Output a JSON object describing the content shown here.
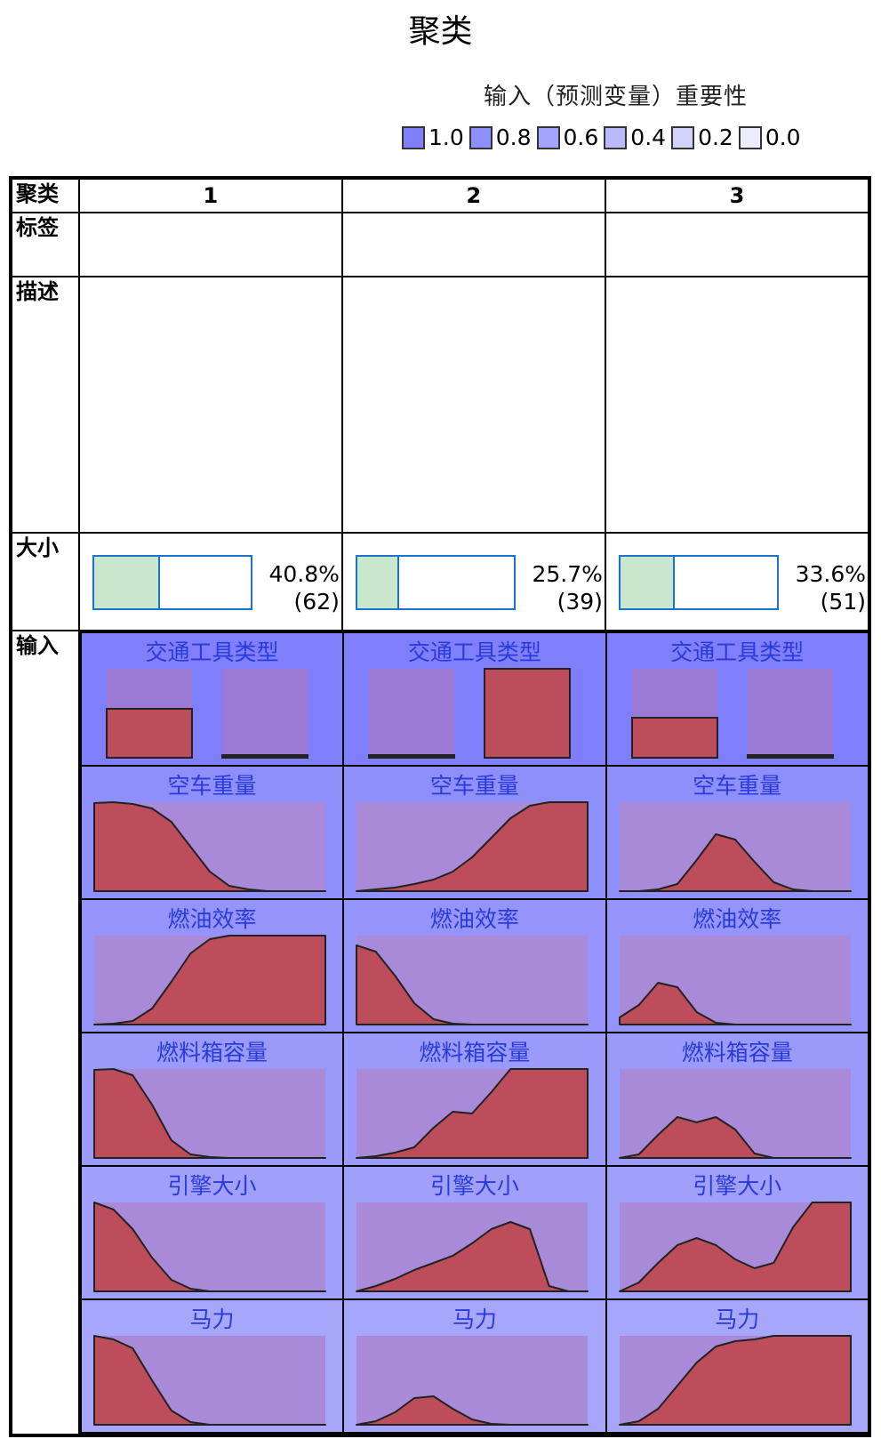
{
  "title": "聚类",
  "legend": {
    "title": "输入（预测变量）重要性",
    "items": [
      {
        "label": "1.0",
        "color": "#7f7ffb"
      },
      {
        "label": "0.8",
        "color": "#8f8ffb"
      },
      {
        "label": "0.6",
        "color": "#a3a3fb"
      },
      {
        "label": "0.4",
        "color": "#b9b9fb"
      },
      {
        "label": "0.2",
        "color": "#d2d2fb"
      },
      {
        "label": "0.0",
        "color": "#ececfb"
      }
    ]
  },
  "row_labels": {
    "cluster": "聚类",
    "label": "标签",
    "description": "描述",
    "size": "大小",
    "inputs": "输入"
  },
  "clusters": [
    "1",
    "2",
    "3"
  ],
  "chart_data": {
    "type": "table",
    "sizes": [
      {
        "cluster": "1",
        "percent": "40.8%",
        "count": "(62)",
        "fraction": 0.408
      },
      {
        "cluster": "2",
        "percent": "25.7%",
        "count": "(39)",
        "fraction": 0.257
      },
      {
        "cluster": "3",
        "percent": "33.6%",
        "count": "(51)",
        "fraction": 0.336
      }
    ],
    "inputs": [
      {
        "name": "交通工具类型",
        "importance": 1.0,
        "bg": "#7f7ffb",
        "kind": "bar",
        "clusters": [
          [
            0.55,
            0.02
          ],
          [
            0.0,
            1.0
          ],
          [
            0.45,
            0.0
          ]
        ]
      },
      {
        "name": "空车重量",
        "importance": 0.8,
        "bg": "#8f8ffb",
        "kind": "density",
        "clusters": [
          [
            0.99,
            1.0,
            0.98,
            0.93,
            0.78,
            0.5,
            0.22,
            0.06,
            0.02,
            0.0,
            0.0,
            0.0,
            0.0
          ],
          [
            0.0,
            0.02,
            0.04,
            0.08,
            0.13,
            0.22,
            0.38,
            0.6,
            0.82,
            0.96,
            1.0,
            1.0,
            1.0
          ],
          [
            0.0,
            0.0,
            0.02,
            0.08,
            0.35,
            0.64,
            0.58,
            0.33,
            0.1,
            0.02,
            0.0,
            0.0,
            0.0
          ]
        ]
      },
      {
        "name": "燃油效率",
        "importance": 0.75,
        "bg": "#9494fb",
        "kind": "density",
        "clusters": [
          [
            0.0,
            0.01,
            0.04,
            0.18,
            0.48,
            0.8,
            0.96,
            1.0,
            1.0,
            1.0,
            1.0,
            1.0,
            1.0
          ],
          [
            0.89,
            0.82,
            0.55,
            0.24,
            0.06,
            0.01,
            0.0,
            0.0,
            0.0,
            0.0,
            0.0,
            0.0,
            0.0
          ],
          [
            0.08,
            0.22,
            0.47,
            0.42,
            0.14,
            0.02,
            0.0,
            0.0,
            0.0,
            0.0,
            0.0,
            0.0,
            0.0
          ]
        ]
      },
      {
        "name": "燃料箱容量",
        "importance": 0.7,
        "bg": "#9a9afb",
        "kind": "density",
        "clusters": [
          [
            0.99,
            1.0,
            0.93,
            0.6,
            0.2,
            0.04,
            0.01,
            0.0,
            0.0,
            0.0,
            0.0,
            0.0,
            0.0
          ],
          [
            0.0,
            0.02,
            0.06,
            0.12,
            0.34,
            0.52,
            0.5,
            0.74,
            1.0,
            1.0,
            1.0,
            1.0,
            1.0
          ],
          [
            0.0,
            0.04,
            0.26,
            0.46,
            0.4,
            0.46,
            0.32,
            0.05,
            0.0,
            0.0,
            0.0,
            0.0,
            0.0
          ]
        ]
      },
      {
        "name": "引擎大小",
        "importance": 0.65,
        "bg": "#a0a0fb",
        "kind": "density",
        "clusters": [
          [
            1.0,
            0.92,
            0.7,
            0.38,
            0.13,
            0.03,
            0.0,
            0.0,
            0.0,
            0.0,
            0.0,
            0.0,
            0.0
          ],
          [
            0.0,
            0.06,
            0.14,
            0.24,
            0.32,
            0.4,
            0.54,
            0.7,
            0.78,
            0.7,
            0.06,
            0.0,
            0.0
          ],
          [
            0.0,
            0.1,
            0.32,
            0.52,
            0.6,
            0.52,
            0.36,
            0.26,
            0.32,
            0.72,
            1.0,
            1.0,
            1.0
          ]
        ]
      },
      {
        "name": "马力",
        "importance": 0.6,
        "bg": "#a6a6fb",
        "kind": "density",
        "clusters": [
          [
            1.0,
            0.96,
            0.86,
            0.5,
            0.16,
            0.03,
            0.0,
            0.0,
            0.0,
            0.0,
            0.0,
            0.0,
            0.0
          ],
          [
            0.0,
            0.04,
            0.14,
            0.3,
            0.32,
            0.18,
            0.06,
            0.01,
            0.0,
            0.0,
            0.0,
            0.0,
            0.0
          ],
          [
            0.0,
            0.04,
            0.18,
            0.44,
            0.7,
            0.88,
            0.94,
            0.96,
            1.0,
            1.0,
            1.0,
            1.0,
            1.0
          ]
        ]
      }
    ]
  }
}
